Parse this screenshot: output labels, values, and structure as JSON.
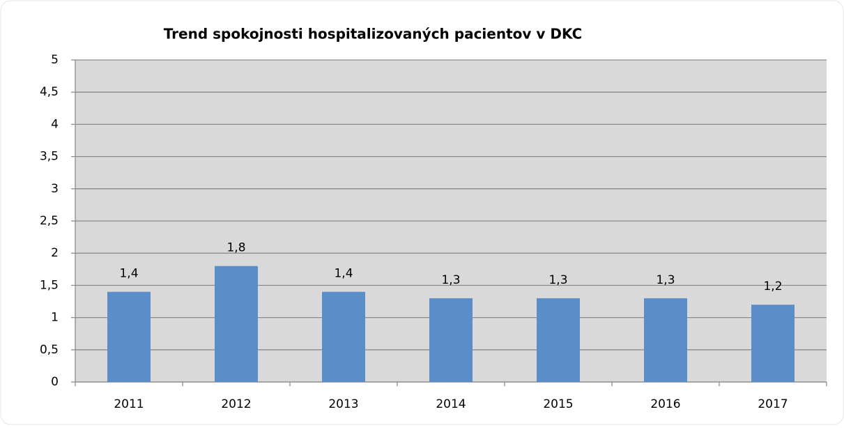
{
  "chart_data": {
    "type": "bar",
    "title": "Trend spokojnosti hospitalizovaných pacientov v DKC",
    "categories": [
      "2011",
      "2012",
      "2013",
      "2014",
      "2015",
      "2016",
      "2017"
    ],
    "values": [
      1.4,
      1.8,
      1.4,
      1.3,
      1.3,
      1.3,
      1.2
    ],
    "value_labels": [
      "1,4",
      "1,8",
      "1,4",
      "1,3",
      "1,3",
      "1,3",
      "1,2"
    ],
    "color": "#5b8ec8",
    "ylim": [
      0,
      5
    ],
    "yticks": [
      0,
      {
        "value": 0.5,
        "label": "0,5"
      },
      1,
      {
        "value": 1.5,
        "label": "1,5"
      },
      2,
      {
        "value": 2.5,
        "label": "2,5"
      },
      3,
      {
        "value": 3.5,
        "label": "3,5"
      },
      4,
      {
        "value": 4.5,
        "label": "4,5"
      },
      5
    ],
    "grid": true
  }
}
